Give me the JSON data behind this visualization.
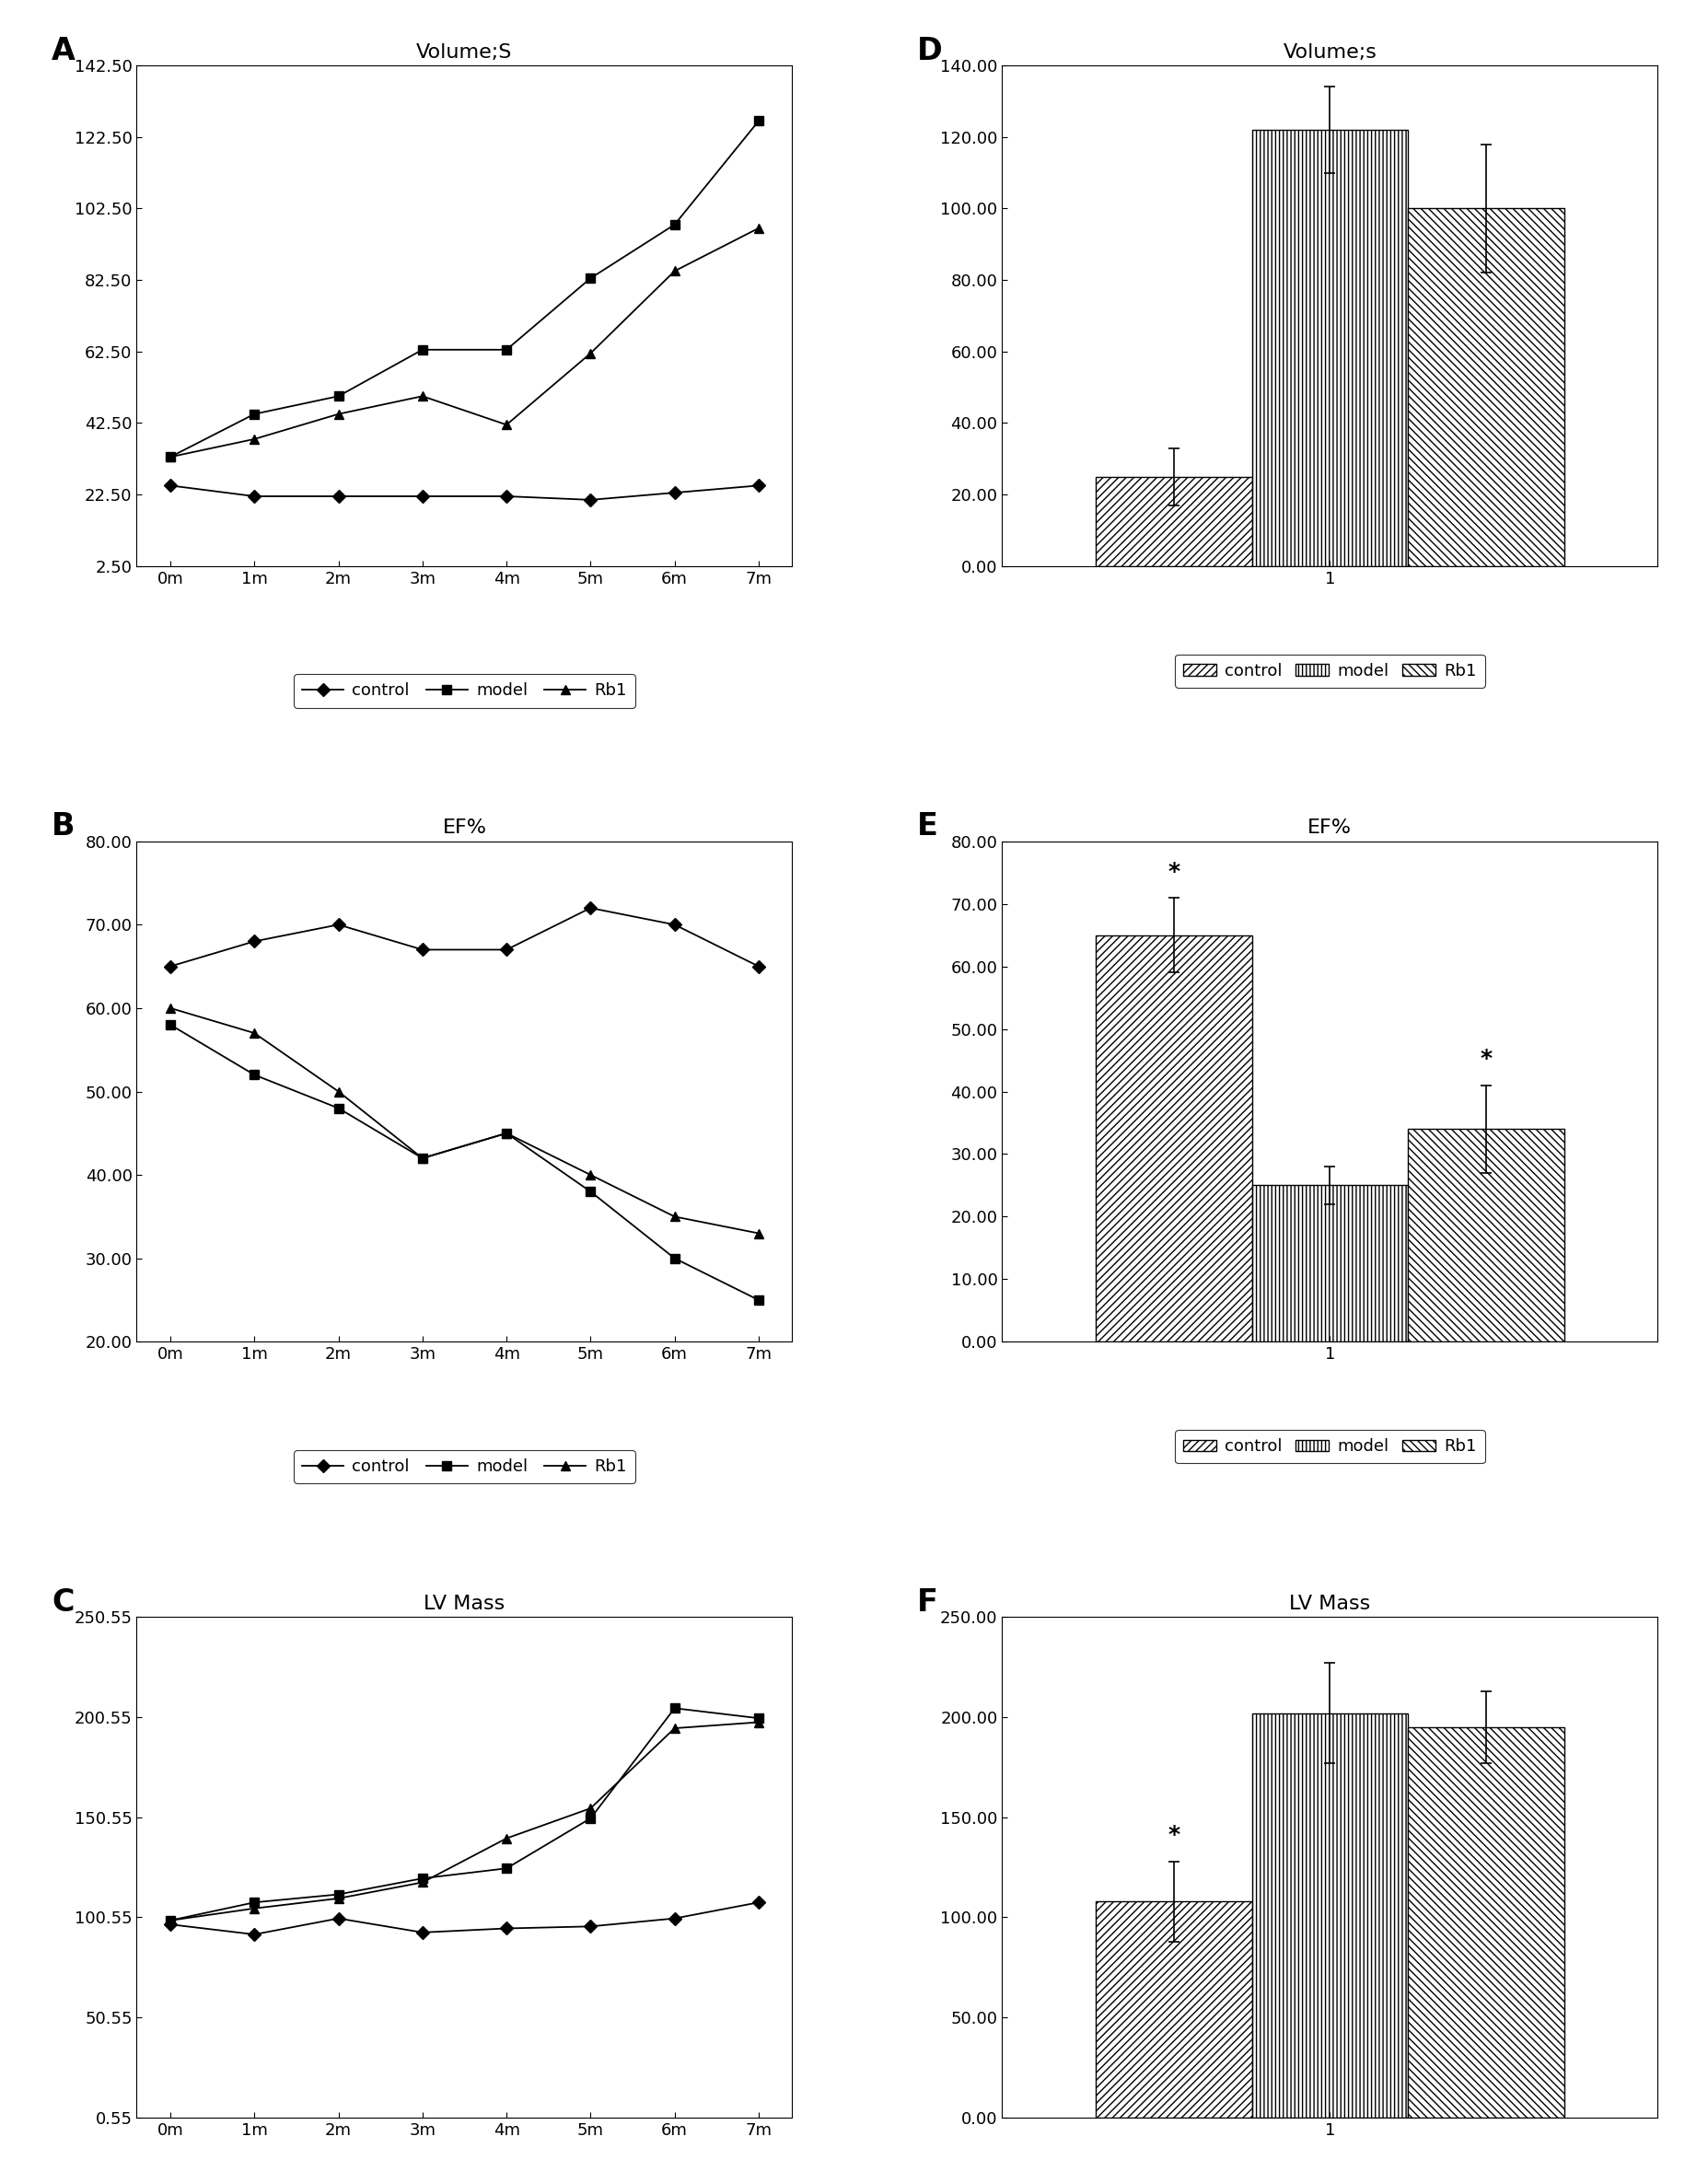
{
  "panel_A": {
    "title": "Volume;S",
    "label": "A",
    "x_labels": [
      "0m",
      "1m",
      "2m",
      "3m",
      "4m",
      "5m",
      "6m",
      "7m"
    ],
    "yticks": [
      2.5,
      22.5,
      42.5,
      62.5,
      82.5,
      102.5,
      122.5,
      142.5
    ],
    "ylim": [
      2.5,
      142.5
    ],
    "control": [
      25,
      22,
      22,
      22,
      22,
      21,
      23,
      25
    ],
    "model": [
      33,
      45,
      50,
      63,
      63,
      83,
      98,
      127
    ],
    "rb1": [
      33,
      38,
      45,
      50,
      42,
      62,
      85,
      97
    ]
  },
  "panel_B": {
    "title": "EF%",
    "label": "B",
    "x_labels": [
      "0m",
      "1m",
      "2m",
      "3m",
      "4m",
      "5m",
      "6m",
      "7m"
    ],
    "yticks": [
      20.0,
      30.0,
      40.0,
      50.0,
      60.0,
      70.0,
      80.0
    ],
    "ylim": [
      20.0,
      80.0
    ],
    "control": [
      65,
      68,
      70,
      67,
      67,
      72,
      70,
      65
    ],
    "model": [
      58,
      52,
      48,
      42,
      45,
      38,
      30,
      25
    ],
    "rb1": [
      60,
      57,
      50,
      42,
      45,
      40,
      35,
      33
    ]
  },
  "panel_C": {
    "title": "LV Mass",
    "label": "C",
    "x_labels": [
      "0m",
      "1m",
      "2m",
      "3m",
      "4m",
      "5m",
      "6m",
      "7m"
    ],
    "yticks": [
      0.55,
      50.55,
      100.55,
      150.55,
      200.55,
      250.55
    ],
    "ylim": [
      0.55,
      250.55
    ],
    "control": [
      97,
      92,
      100,
      93,
      95,
      96,
      100,
      108
    ],
    "model": [
      99,
      108,
      112,
      120,
      125,
      150,
      205,
      200
    ],
    "rb1": [
      99,
      105,
      110,
      118,
      140,
      155,
      195,
      198
    ]
  },
  "panel_D": {
    "title": "Volume;s",
    "label": "D",
    "x_tick": "1",
    "yticks": [
      0.0,
      20.0,
      40.0,
      60.0,
      80.0,
      100.0,
      120.0,
      140.0
    ],
    "ylim": [
      0.0,
      140.0
    ],
    "control_val": 25,
    "model_val": 122,
    "rb1_val": 100,
    "control_err": 8,
    "model_err": 12,
    "rb1_err": 18,
    "asterisk": []
  },
  "panel_E": {
    "title": "EF%",
    "label": "E",
    "x_tick": "1",
    "yticks": [
      0.0,
      10.0,
      20.0,
      30.0,
      40.0,
      50.0,
      60.0,
      70.0,
      80.0
    ],
    "ylim": [
      0.0,
      80.0
    ],
    "control_val": 65,
    "model_val": 25,
    "rb1_val": 34,
    "control_err": 6,
    "model_err": 3,
    "rb1_err": 7,
    "asterisk": [
      "control",
      "rb1"
    ]
  },
  "panel_F": {
    "title": "LV Mass",
    "label": "F",
    "x_tick": "1",
    "yticks": [
      0.0,
      50.0,
      100.0,
      150.0,
      200.0,
      250.0
    ],
    "ylim": [
      0.0,
      250.0
    ],
    "control_val": 108,
    "model_val": 202,
    "rb1_val": 195,
    "control_err": 20,
    "model_err": 25,
    "rb1_err": 18,
    "asterisk": [
      "control"
    ]
  }
}
